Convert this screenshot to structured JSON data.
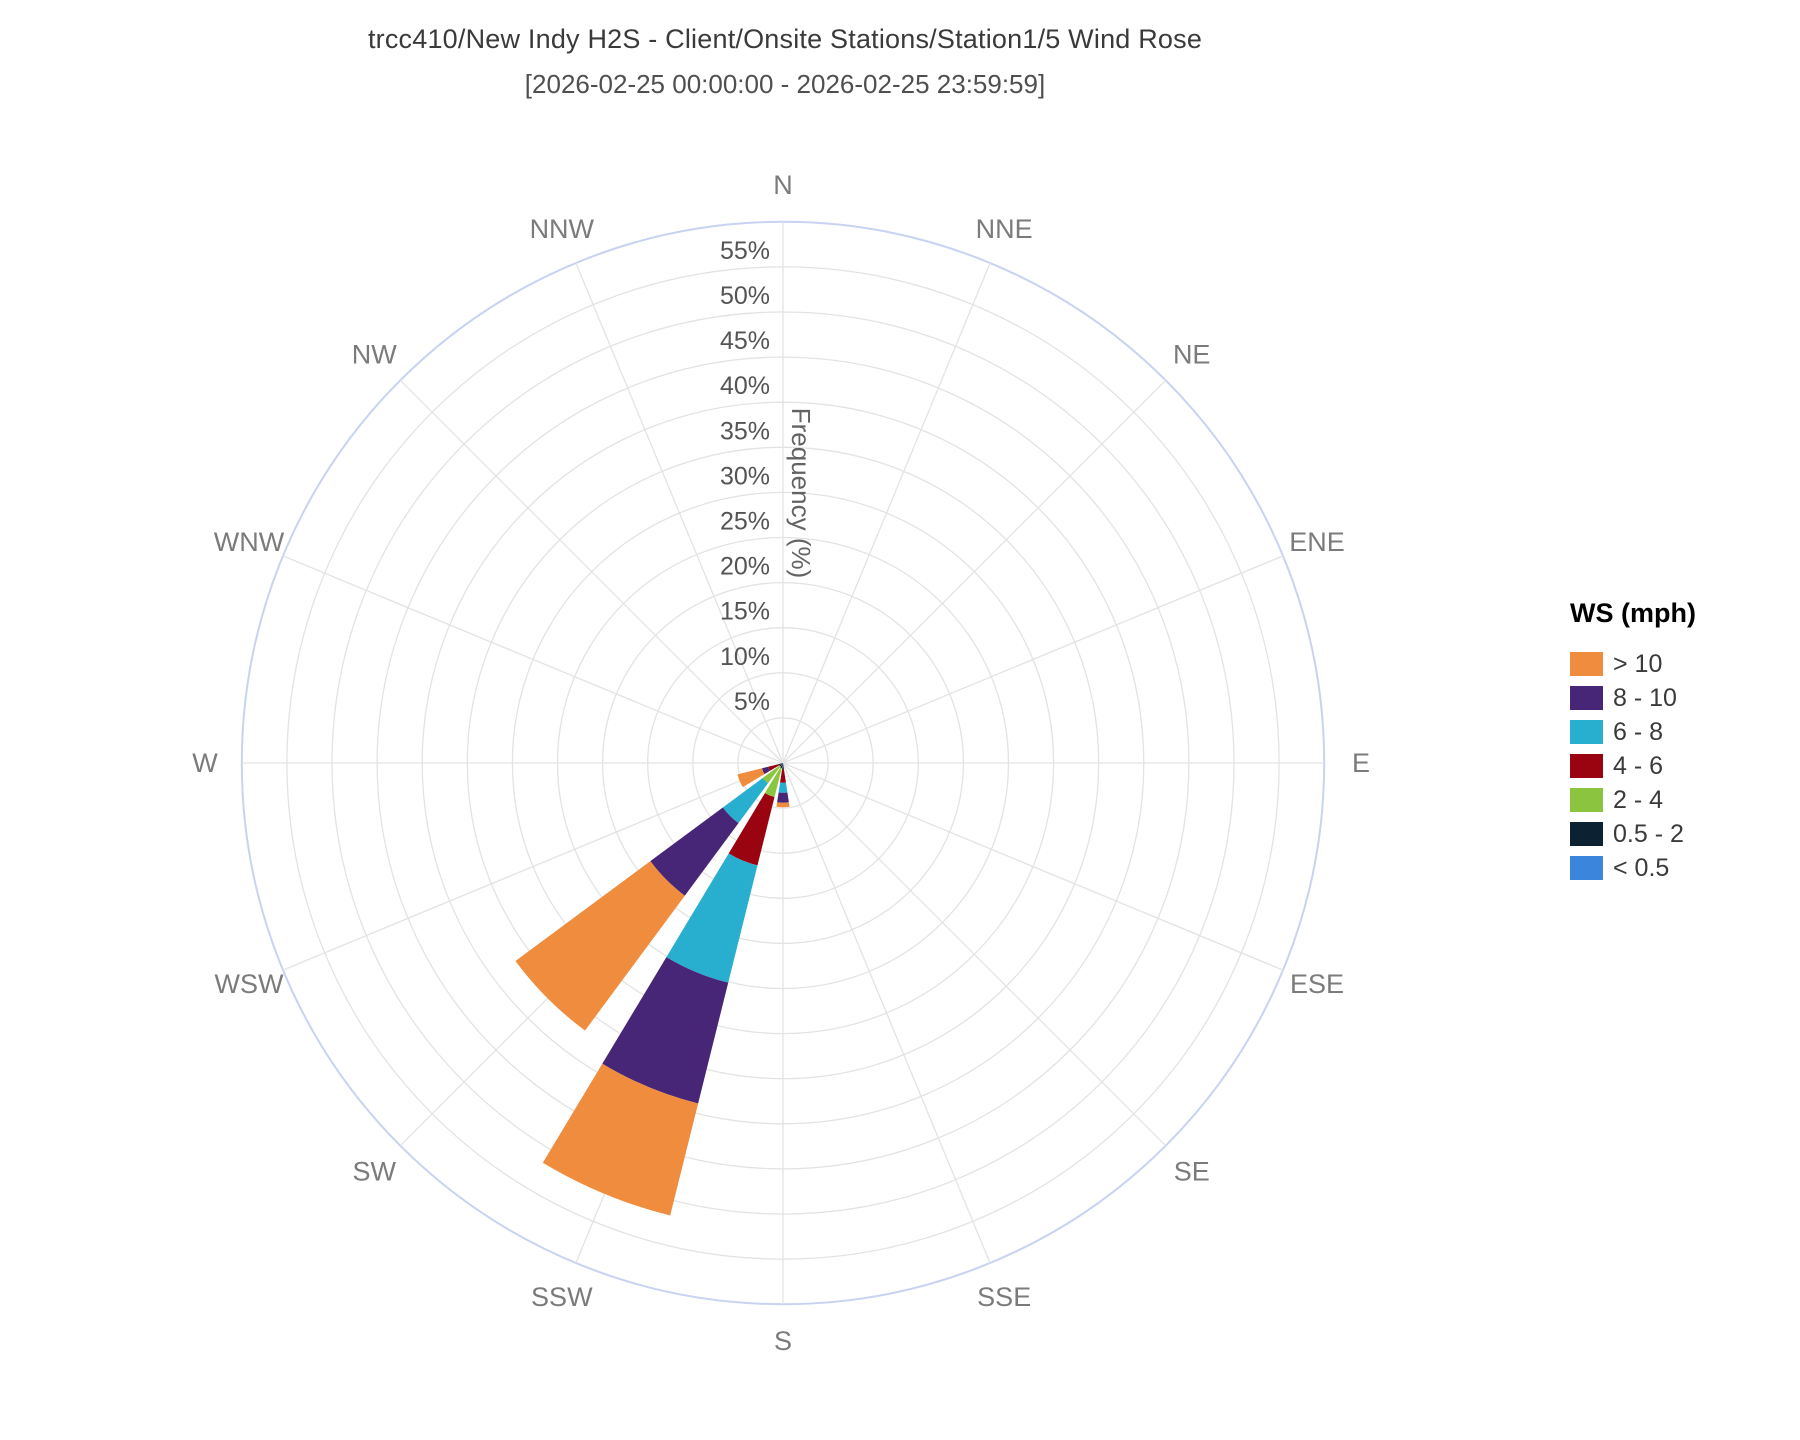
{
  "header": {
    "title": "trcc410/New Indy H2S - Client/Onsite Stations/Station1/5 Wind Rose",
    "subtitle": "[2026-02-25 00:00:00 - 2026-02-25 23:59:59]"
  },
  "legend": {
    "title": "WS (mph)",
    "items": [
      {
        "label": "> 10",
        "color": "#EF8C3E"
      },
      {
        "label": "8 - 10",
        "color": "#482677"
      },
      {
        "label": "6 - 8",
        "color": "#28AFD0"
      },
      {
        "label": "4 - 6",
        "color": "#9A0410"
      },
      {
        "label": "2 - 4",
        "color": "#8BC53F"
      },
      {
        "label": "0.5 - 2",
        "color": "#0C2233"
      },
      {
        "label": "< 0.5",
        "color": "#3C85DC"
      }
    ]
  },
  "chart_data": {
    "type": "bar",
    "subtype": "polar-wind-rose-stacked",
    "title": "trcc410/New Indy H2S - Client/Onsite Stations/Station1/5 Wind Rose",
    "subtitle": "[2026-02-25 00:00:00 - 2026-02-25 23:59:59]",
    "radial_axis": {
      "label": "Frequency (%)",
      "tick_labels": [
        "5%",
        "10%",
        "15%",
        "20%",
        "25%",
        "30%",
        "35%",
        "40%",
        "45%",
        "50%",
        "55%"
      ],
      "tick_values": [
        5,
        10,
        15,
        20,
        25,
        30,
        35,
        40,
        45,
        50,
        55
      ],
      "ring_step_pct": 5,
      "outer_boundary_pct": 60,
      "grid": true
    },
    "directions": [
      "N",
      "NNE",
      "NE",
      "ENE",
      "E",
      "ESE",
      "SE",
      "SSE",
      "S",
      "SSW",
      "SW",
      "WSW",
      "W",
      "WNW",
      "NW",
      "NNW"
    ],
    "legend_position": "right",
    "series": [
      {
        "name": "< 0.5",
        "color": "#3C85DC",
        "values": [
          0,
          0,
          0,
          0,
          0,
          0,
          0,
          0,
          0,
          0,
          0,
          0,
          0,
          0,
          0,
          0
        ]
      },
      {
        "name": "0.5 - 2",
        "color": "#0C2233",
        "values": [
          0,
          0,
          0,
          0,
          0,
          0,
          0,
          0,
          0.7,
          0.6,
          0.5,
          0.5,
          0,
          0,
          0,
          0
        ]
      },
      {
        "name": "2 - 4",
        "color": "#8BC53F",
        "values": [
          0,
          0,
          0,
          0,
          0,
          0,
          0,
          0,
          0,
          3.3,
          2.3,
          0,
          0,
          0,
          0,
          0
        ]
      },
      {
        "name": "4 - 6",
        "color": "#9A0410",
        "values": [
          0,
          0,
          0,
          0,
          0,
          0,
          0,
          0,
          1.5,
          7.8,
          0,
          1.2,
          0,
          0,
          0,
          0
        ]
      },
      {
        "name": "6 - 8",
        "color": "#28AFD0",
        "values": [
          0,
          0,
          0,
          0,
          0,
          0,
          0,
          0,
          1.1,
          13.4,
          5.5,
          0,
          0,
          0,
          0,
          0
        ]
      },
      {
        "name": "8 - 10",
        "color": "#482677",
        "values": [
          0,
          0,
          0,
          0,
          0,
          0,
          0,
          0,
          1.1,
          13.8,
          10.0,
          0.7,
          0,
          0,
          0,
          0
        ]
      },
      {
        "name": "> 10",
        "color": "#EF8C3E",
        "values": [
          0,
          0,
          0,
          0,
          0,
          0,
          0,
          0,
          0.5,
          12.8,
          18.6,
          2.8,
          0,
          0,
          0,
          0
        ]
      }
    ],
    "direction_totals_pct": {
      "S": 4.9,
      "SSW": 51.7,
      "SW": 36.9,
      "WSW": 5.2
    }
  },
  "style_colors": {
    "grid_ring": "#E3E3E3",
    "outer_ring": "#C7D3F0",
    "spoke": "#E3E3E3",
    "direction_label": "#7b7b7b",
    "tick_label": "#545454",
    "axis_title": "#636363"
  }
}
